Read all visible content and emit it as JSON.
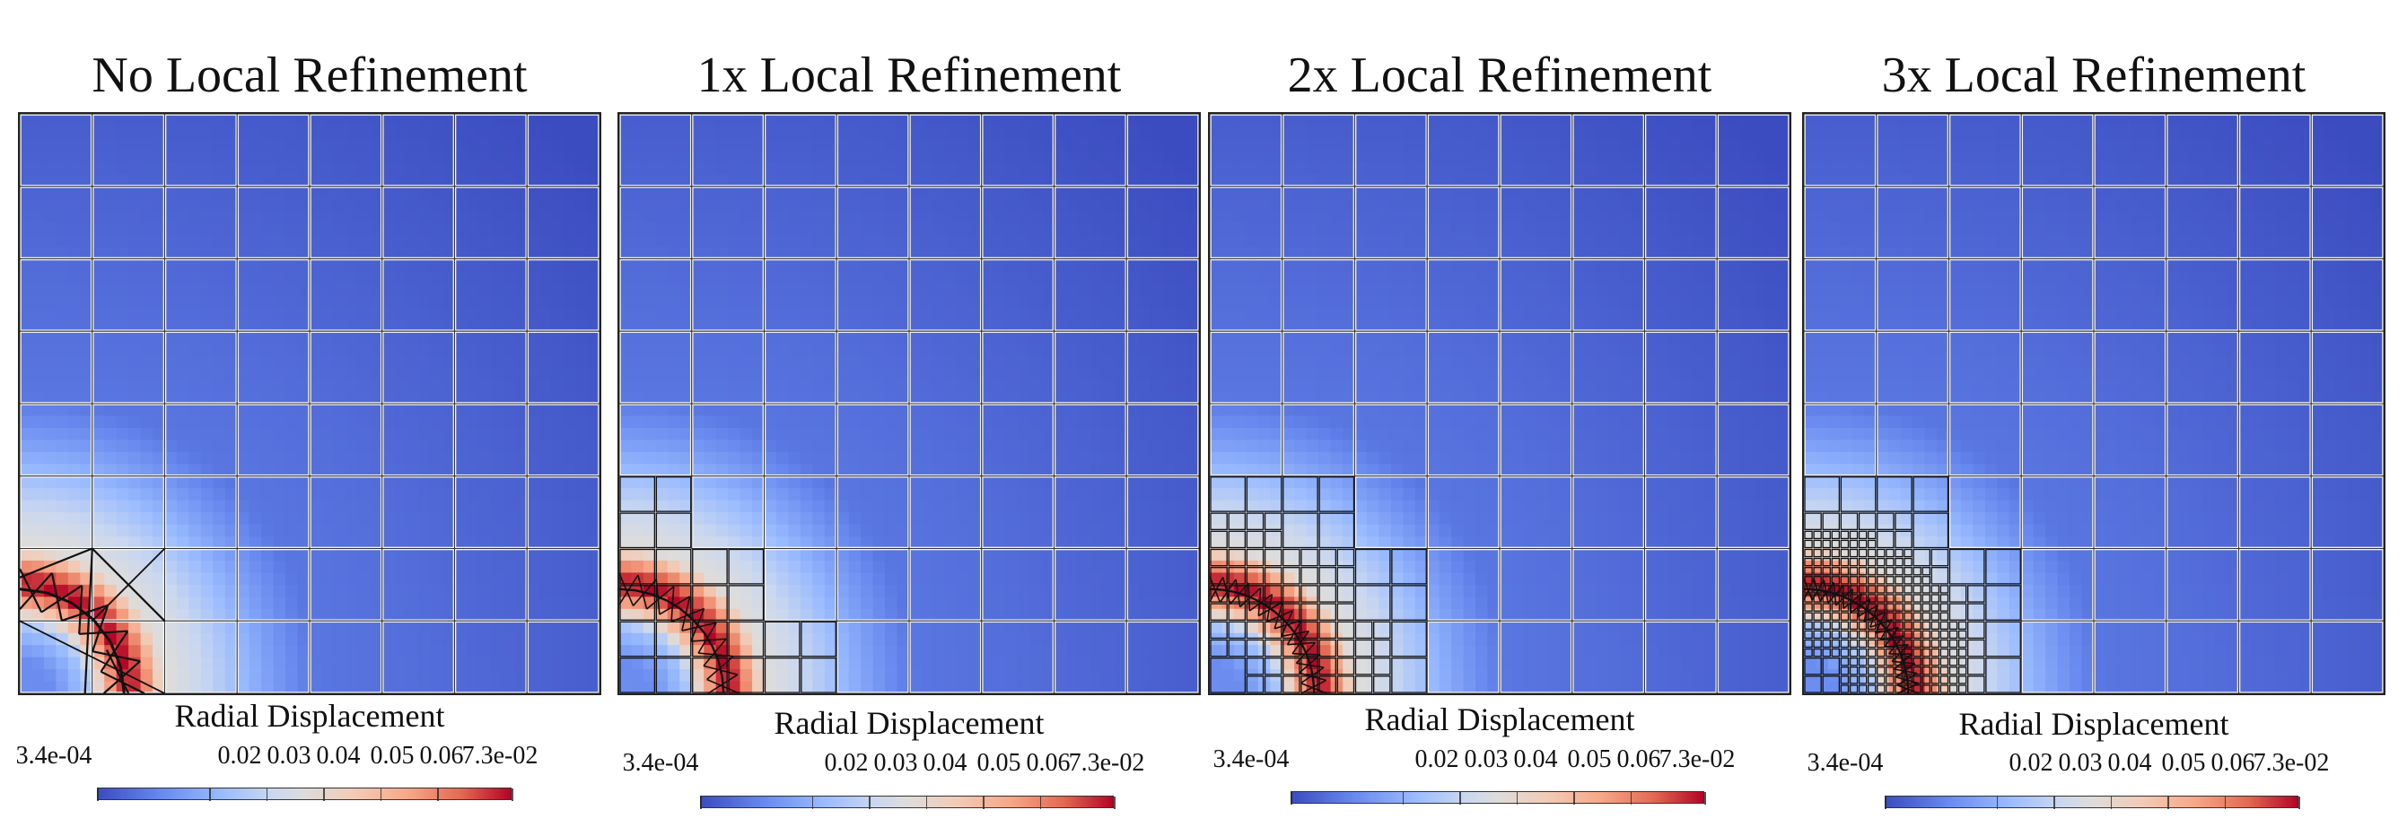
{
  "panels": [
    {
      "title": "No Local Refinement",
      "refinement_level": 0
    },
    {
      "title": "1x Local Refinement",
      "refinement_level": 1
    },
    {
      "title": "2x Local Refinement",
      "refinement_level": 2
    },
    {
      "title": "3x Local Refinement",
      "refinement_level": 3
    }
  ],
  "colorbar": {
    "title": "Radial Displacement",
    "tick_labels": [
      "3.4e-04",
      "0.02",
      "0.03",
      "0.04",
      "0.05",
      "0.06",
      "7.3e-02"
    ],
    "tick_values": [
      0.00034,
      0.02,
      0.03,
      0.04,
      0.05,
      0.06,
      0.073
    ],
    "min": 0.00034,
    "max": 0.073,
    "colormap": "coolwarm",
    "colors": {
      "low": "#3b4cc0",
      "mid": "#dddcdc",
      "high": "#b40426"
    }
  },
  "mesh": {
    "base_grid": 8
  }
}
